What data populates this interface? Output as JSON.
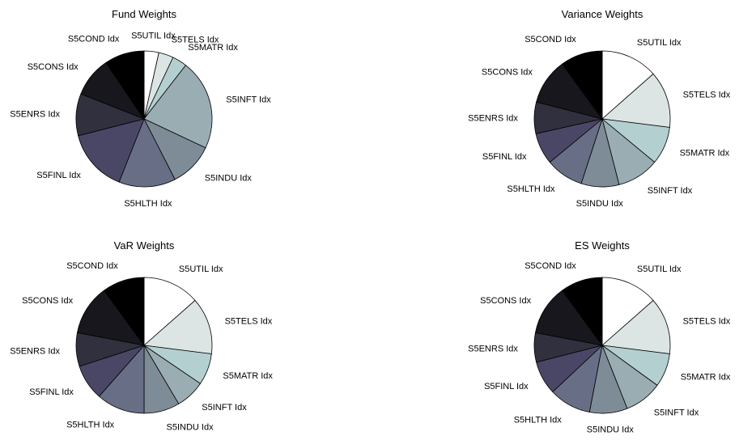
{
  "chart_data": [
    {
      "type": "pie",
      "title": "Fund Weights",
      "labels": [
        "S5UTIL Idx",
        "S5TELS Idx",
        "S5MATR Idx",
        "S5INFT Idx",
        "S5INDU Idx",
        "S5HLTH Idx",
        "S5FINL Idx",
        "S5ENRS Idx",
        "S5CONS Idx",
        "S5COND Idx"
      ],
      "values": [
        3.5,
        3.5,
        3.5,
        21.5,
        10.5,
        13.5,
        15.0,
        10.0,
        9.5,
        9.5
      ],
      "colors": [
        "#ffffff",
        "#dce5e4",
        "#b4cfcf",
        "#9aadb3",
        "#7e8c98",
        "#686e85",
        "#4a4766",
        "#30303f",
        "#17171d",
        "#000000"
      ]
    },
    {
      "type": "pie",
      "title": "Variance Weights",
      "labels": [
        "S5UTIL Idx",
        "S5TELS Idx",
        "S5MATR Idx",
        "S5INFT Idx",
        "S5INDU Idx",
        "S5HLTH Idx",
        "S5FINL Idx",
        "S5ENRS Idx",
        "S5CONS Idx",
        "S5COND Idx"
      ],
      "values": [
        13.5,
        13.5,
        9.0,
        10.0,
        9.0,
        9.0,
        7.5,
        7.5,
        11.0,
        10.0
      ],
      "colors": [
        "#ffffff",
        "#dce5e4",
        "#b4cfcf",
        "#9aadb3",
        "#7e8c98",
        "#686e85",
        "#4a4766",
        "#30303f",
        "#17171d",
        "#000000"
      ]
    },
    {
      "type": "pie",
      "title": "VaR Weights",
      "labels": [
        "S5UTIL Idx",
        "S5TELS Idx",
        "S5MATR Idx",
        "S5INFT Idx",
        "S5INDU Idx",
        "S5HLTH Idx",
        "S5FINL Idx",
        "S5ENRS Idx",
        "S5CONS Idx",
        "S5COND Idx"
      ],
      "values": [
        13.5,
        13.5,
        7.5,
        7.0,
        8.5,
        11.5,
        8.5,
        8.0,
        12.0,
        10.0
      ],
      "colors": [
        "#ffffff",
        "#dce5e4",
        "#b4cfcf",
        "#9aadb3",
        "#7e8c98",
        "#686e85",
        "#4a4766",
        "#30303f",
        "#17171d",
        "#000000"
      ]
    },
    {
      "type": "pie",
      "title": "ES Weights",
      "labels": [
        "S5UTIL Idx",
        "S5TELS Idx",
        "S5MATR Idx",
        "S5INFT Idx",
        "S5INDU Idx",
        "S5HLTH Idx",
        "S5FINL Idx",
        "S5ENRS Idx",
        "S5CONS Idx",
        "S5COND Idx"
      ],
      "values": [
        13.5,
        13.5,
        8.0,
        9.0,
        9.0,
        10.0,
        8.0,
        7.0,
        12.0,
        10.0
      ],
      "colors": [
        "#ffffff",
        "#dce5e4",
        "#b4cfcf",
        "#9aadb3",
        "#7e8c98",
        "#686e85",
        "#4a4766",
        "#30303f",
        "#17171d",
        "#000000"
      ]
    }
  ]
}
